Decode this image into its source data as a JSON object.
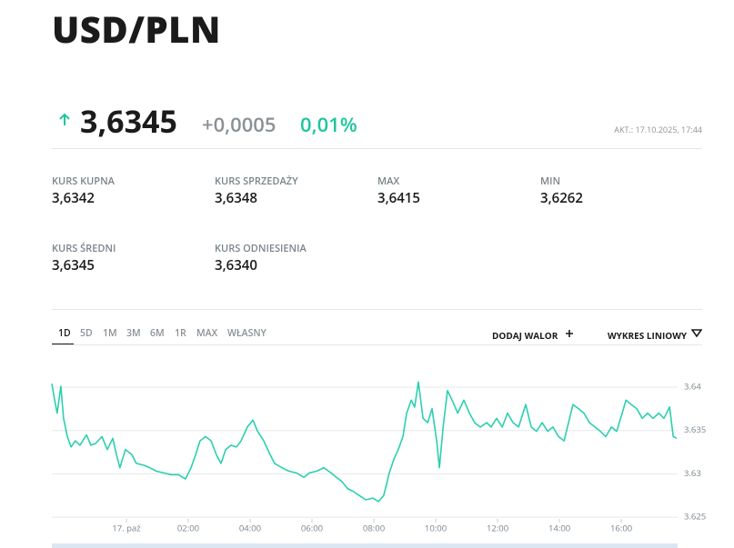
{
  "header": {
    "title": "USD/PLN"
  },
  "quote": {
    "price": "3,6345",
    "change": "+0,0005",
    "change_percent": "0,01%",
    "updated": "AKT.: 17.10.2025, 17:44"
  },
  "stats": [
    {
      "label": "KURS KUPNA",
      "value": "3,6342"
    },
    {
      "label": "KURS SPRZEDAŻY",
      "value": "3,6348"
    },
    {
      "label": "MAX",
      "value": "3,6415"
    },
    {
      "label": "MIN",
      "value": "3,6262"
    },
    {
      "label": "KURS ŚREDNI",
      "value": "3,6345"
    },
    {
      "label": "KURS ODNIESIENIA",
      "value": "3,6340"
    }
  ],
  "tabs": [
    "1D",
    "5D",
    "1M",
    "3M",
    "6M",
    "1R",
    "MAX",
    "WŁASNY"
  ],
  "actions": {
    "add": "DODAJ WALOR",
    "chart_type": "WYKRES LINIOWY"
  },
  "chart_data": {
    "type": "line",
    "color": "#2ccfaf",
    "grid": true,
    "x": [
      -2.41,
      -2.32,
      -2.24,
      -2.12,
      -2.03,
      -1.91,
      -1.79,
      -1.65,
      -1.5,
      -1.29,
      -1.15,
      -1.0,
      -0.79,
      -0.62,
      -0.44,
      -0.32,
      -0.21,
      -0.03,
      0.18,
      0.32,
      0.56,
      0.76,
      0.97,
      1.21,
      1.44,
      1.68,
      1.91,
      2.09,
      2.24,
      2.38,
      2.56,
      2.74,
      2.91,
      3.06,
      3.21,
      3.38,
      3.56,
      3.71,
      3.91,
      4.09,
      4.24,
      4.44,
      4.62,
      4.79,
      5.03,
      5.26,
      5.5,
      5.74,
      5.91,
      6.15,
      6.38,
      6.62,
      6.79,
      6.97,
      7.15,
      7.32,
      7.53,
      7.74,
      7.97,
      8.15,
      8.32,
      8.5,
      8.65,
      8.79,
      8.94,
      9.06,
      9.21,
      9.32,
      9.44,
      9.59,
      9.74,
      9.88,
      10.03,
      10.12,
      10.24,
      10.38,
      10.53,
      10.71,
      10.91,
      11.09,
      11.26,
      11.44,
      11.65,
      11.79,
      11.97,
      12.15,
      12.32,
      12.5,
      12.68,
      12.91,
      13.09,
      13.26,
      13.44,
      13.62,
      13.79,
      13.97,
      14.15,
      14.26,
      14.44,
      14.62,
      14.79,
      14.97,
      15.15,
      15.32,
      15.5,
      15.68,
      15.85,
      16.03,
      16.15,
      16.32,
      16.5,
      16.68,
      16.85,
      17.03,
      17.21,
      17.38,
      17.56,
      17.68,
      17.79
    ],
    "values": [
      3.6404,
      3.6385,
      3.637,
      3.6401,
      3.6364,
      3.6343,
      3.6331,
      3.6338,
      3.6333,
      3.6345,
      3.6333,
      3.6335,
      3.6343,
      3.6328,
      3.6341,
      3.6322,
      3.6307,
      3.6328,
      3.6322,
      3.6312,
      3.631,
      3.6307,
      3.6303,
      3.6301,
      3.6299,
      3.6299,
      3.6294,
      3.6307,
      3.6322,
      3.6338,
      3.6343,
      3.6338,
      3.6322,
      3.6312,
      3.6328,
      3.6333,
      3.6331,
      3.6338,
      3.6354,
      3.6362,
      3.6349,
      3.6338,
      3.6324,
      3.6312,
      3.6307,
      3.6303,
      3.6301,
      3.6296,
      3.6301,
      3.6303,
      3.6307,
      3.6301,
      3.6296,
      3.6291,
      3.6283,
      3.628,
      3.6275,
      3.627,
      3.6272,
      3.6268,
      3.6275,
      3.6301,
      3.6317,
      3.6328,
      3.6343,
      3.637,
      3.6385,
      3.6377,
      3.6406,
      3.6364,
      3.6359,
      3.6375,
      3.6338,
      3.6307,
      3.6354,
      3.6396,
      3.6385,
      3.637,
      3.6385,
      3.637,
      3.6359,
      3.6354,
      3.6359,
      3.6354,
      3.6364,
      3.6354,
      3.637,
      3.6359,
      3.6354,
      3.638,
      3.6354,
      3.6349,
      3.6359,
      3.6349,
      3.6354,
      3.6343,
      3.6338,
      3.6354,
      3.638,
      3.6375,
      3.637,
      3.6359,
      3.6354,
      3.6349,
      3.6343,
      3.6354,
      3.6349,
      3.637,
      3.6385,
      3.638,
      3.6375,
      3.6364,
      3.637,
      3.6364,
      3.637,
      3.6364,
      3.6377,
      3.6343,
      3.6341
    ],
    "xlim": [
      -2.41,
      17.82
    ],
    "xticks": [
      {
        "value": 0,
        "label": "17. paź"
      },
      {
        "value": 2,
        "label": "02:00"
      },
      {
        "value": 4,
        "label": "04:00"
      },
      {
        "value": 6,
        "label": "06:00"
      },
      {
        "value": 8,
        "label": "08:00"
      },
      {
        "value": 10,
        "label": "10:00"
      },
      {
        "value": 12,
        "label": "12:00"
      },
      {
        "value": 14,
        "label": "14:00"
      },
      {
        "value": 16,
        "label": "16:00"
      }
    ],
    "ylim": [
      3.6248,
      3.6422
    ],
    "yticks": [
      3.625,
      3.63,
      3.635,
      3.64
    ]
  }
}
